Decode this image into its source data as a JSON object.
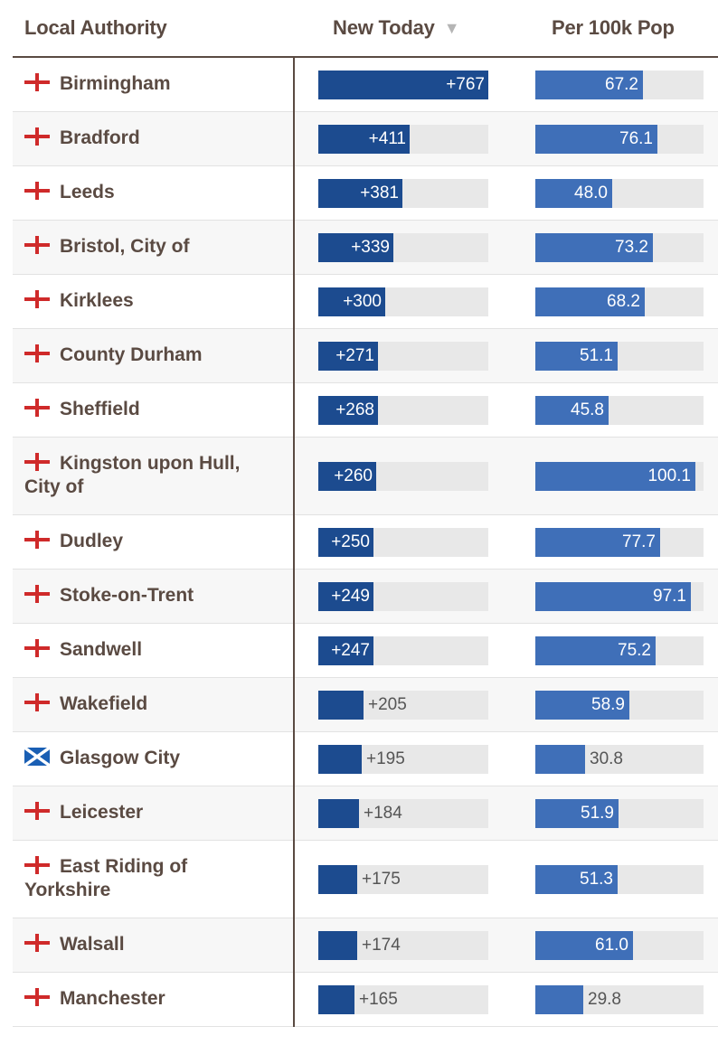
{
  "header": {
    "local_authority": "Local Authority",
    "new_today": "New Today",
    "per_100k": "Per 100k Pop",
    "sort_glyph": "▼"
  },
  "chart_data": {
    "type": "table",
    "columns": [
      "Local Authority",
      "New Today",
      "Per 100k Pop"
    ],
    "new_today_max": 767,
    "per_100k_max": 105,
    "rows": [
      {
        "name": "Birmingham",
        "flag": "england",
        "new_today": 767,
        "new_label": "+767",
        "per_100k": 67.2,
        "per_label": "67.2"
      },
      {
        "name": "Bradford",
        "flag": "england",
        "new_today": 411,
        "new_label": "+411",
        "per_100k": 76.1,
        "per_label": "76.1"
      },
      {
        "name": "Leeds",
        "flag": "england",
        "new_today": 381,
        "new_label": "+381",
        "per_100k": 48.0,
        "per_label": "48.0"
      },
      {
        "name": "Bristol, City of",
        "flag": "england",
        "new_today": 339,
        "new_label": "+339",
        "per_100k": 73.2,
        "per_label": "73.2"
      },
      {
        "name": "Kirklees",
        "flag": "england",
        "new_today": 300,
        "new_label": "+300",
        "per_100k": 68.2,
        "per_label": "68.2"
      },
      {
        "name": "County Durham",
        "flag": "england",
        "new_today": 271,
        "new_label": "+271",
        "per_100k": 51.1,
        "per_label": "51.1"
      },
      {
        "name": "Sheffield",
        "flag": "england",
        "new_today": 268,
        "new_label": "+268",
        "per_100k": 45.8,
        "per_label": "45.8"
      },
      {
        "name": "Kingston upon Hull, City of",
        "flag": "england",
        "new_today": 260,
        "new_label": "+260",
        "per_100k": 100.1,
        "per_label": "100.1",
        "tall": true
      },
      {
        "name": "Dudley",
        "flag": "england",
        "new_today": 250,
        "new_label": "+250",
        "per_100k": 77.7,
        "per_label": "77.7"
      },
      {
        "name": "Stoke-on-Trent",
        "flag": "england",
        "new_today": 249,
        "new_label": "+249",
        "per_100k": 97.1,
        "per_label": "97.1"
      },
      {
        "name": "Sandwell",
        "flag": "england",
        "new_today": 247,
        "new_label": "+247",
        "per_100k": 75.2,
        "per_label": "75.2"
      },
      {
        "name": "Wakefield",
        "flag": "england",
        "new_today": 205,
        "new_label": "+205",
        "per_100k": 58.9,
        "per_label": "58.9"
      },
      {
        "name": "Glasgow City",
        "flag": "scotland",
        "new_today": 195,
        "new_label": "+195",
        "per_100k": 30.8,
        "per_label": "30.8"
      },
      {
        "name": "Leicester",
        "flag": "england",
        "new_today": 184,
        "new_label": "+184",
        "per_100k": 51.9,
        "per_label": "51.9"
      },
      {
        "name": "East Riding of Yorkshire",
        "flag": "england",
        "new_today": 175,
        "new_label": "+175",
        "per_100k": 51.3,
        "per_label": "51.3",
        "tall": true
      },
      {
        "name": "Walsall",
        "flag": "england",
        "new_today": 174,
        "new_label": "+174",
        "per_100k": 61.0,
        "per_label": "61.0"
      },
      {
        "name": "Manchester",
        "flag": "england",
        "new_today": 165,
        "new_label": "+165",
        "per_100k": 29.8,
        "per_label": "29.8"
      }
    ]
  }
}
